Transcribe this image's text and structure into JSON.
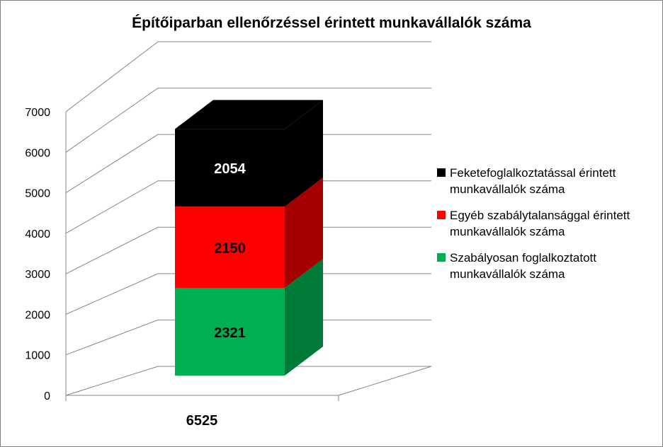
{
  "chart_data": {
    "type": "bar",
    "stacked": true,
    "three_d": true,
    "title": "Építőiparban ellenőrzéssel érintett munkavállalók száma",
    "categories": [
      "6525"
    ],
    "ylim": [
      0,
      7000
    ],
    "y_ticks": [
      0,
      1000,
      2000,
      3000,
      4000,
      5000,
      6000,
      7000
    ],
    "grid": true,
    "legend_position": "right",
    "series": [
      {
        "name": "Szabályosan foglalkoztatott munkavállalók száma",
        "values": [
          2321
        ],
        "color": "#00b050",
        "side_color": "#007a38"
      },
      {
        "name": "Egyéb szabálytalansággal érintett munkavállalók száma",
        "values": [
          2150
        ],
        "color": "#ff0000",
        "side_color": "#a50000"
      },
      {
        "name": "Feketefoglalkoztatással érintett munkavállalók száma",
        "values": [
          2054
        ],
        "color": "#000000",
        "side_color": "#000000"
      }
    ]
  }
}
